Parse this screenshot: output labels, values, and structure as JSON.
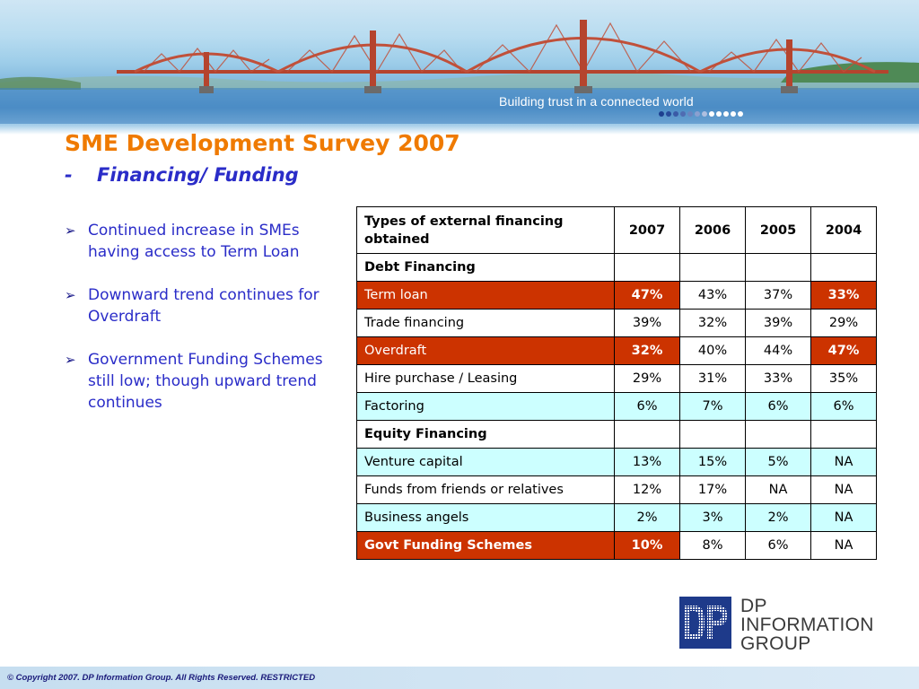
{
  "banner": {
    "tagline": "Building trust in a connected world",
    "dot_colors": [
      "#1d3f8f",
      "#27499a",
      "#3a5aa6",
      "#4f6cb2",
      "#6a84c0",
      "#8aa0d0",
      "#aebfe0",
      "#ffffff",
      "#ffffff",
      "#ffffff",
      "#ffffff",
      "#ffffff"
    ]
  },
  "title": "SME Development Survey 2007",
  "subtitle": {
    "dash": "-",
    "text": "Financing/ Funding"
  },
  "bullets": [
    "Continued increase in SMEs having access to Term Loan",
    "Downward trend continues for Overdraft",
    "Government Funding Schemes still low; though upward trend continues"
  ],
  "bullet_glyph": "➢",
  "table": {
    "header": {
      "label": "Types of external financing obtained",
      "years": [
        "2007",
        "2006",
        "2005",
        "2004"
      ]
    },
    "rows": [
      {
        "name": "Debt Financing",
        "values": [
          "",
          "",
          "",
          ""
        ]
      },
      {
        "name": "Term loan",
        "values": [
          "47%",
          "43%",
          "37%",
          "33%"
        ]
      },
      {
        "name": "Trade financing",
        "values": [
          "39%",
          "32%",
          "39%",
          "29%"
        ]
      },
      {
        "name": "Overdraft",
        "values": [
          "32%",
          "40%",
          "44%",
          "47%"
        ]
      },
      {
        "name": "Hire purchase / Leasing",
        "values": [
          "29%",
          "31%",
          "33%",
          "35%"
        ]
      },
      {
        "name": "Factoring",
        "values": [
          "6%",
          "7%",
          "6%",
          "6%"
        ]
      },
      {
        "name": "Equity Financing",
        "values": [
          "",
          "",
          "",
          ""
        ]
      },
      {
        "name": "Venture capital",
        "values": [
          "13%",
          "15%",
          "5%",
          "NA"
        ]
      },
      {
        "name": "Funds from friends or relatives",
        "values": [
          "12%",
          "17%",
          "NA",
          "NA"
        ]
      },
      {
        "name": "Business angels",
        "values": [
          "2%",
          "3%",
          "2%",
          "NA"
        ]
      },
      {
        "name": "Govt Funding Schemes",
        "values": [
          "10%",
          "8%",
          "6%",
          "NA"
        ]
      }
    ],
    "highlight_color": "#cc3300",
    "alt_row_color": "#ccffff"
  },
  "logo": {
    "mark_text": "DP",
    "line1": "DP",
    "line2": "INFORMATION",
    "line3": "GROUP",
    "color": "#1e3a8a"
  },
  "footer": "© Copyright 2007. DP Information Group. All Rights Reserved. RESTRICTED"
}
